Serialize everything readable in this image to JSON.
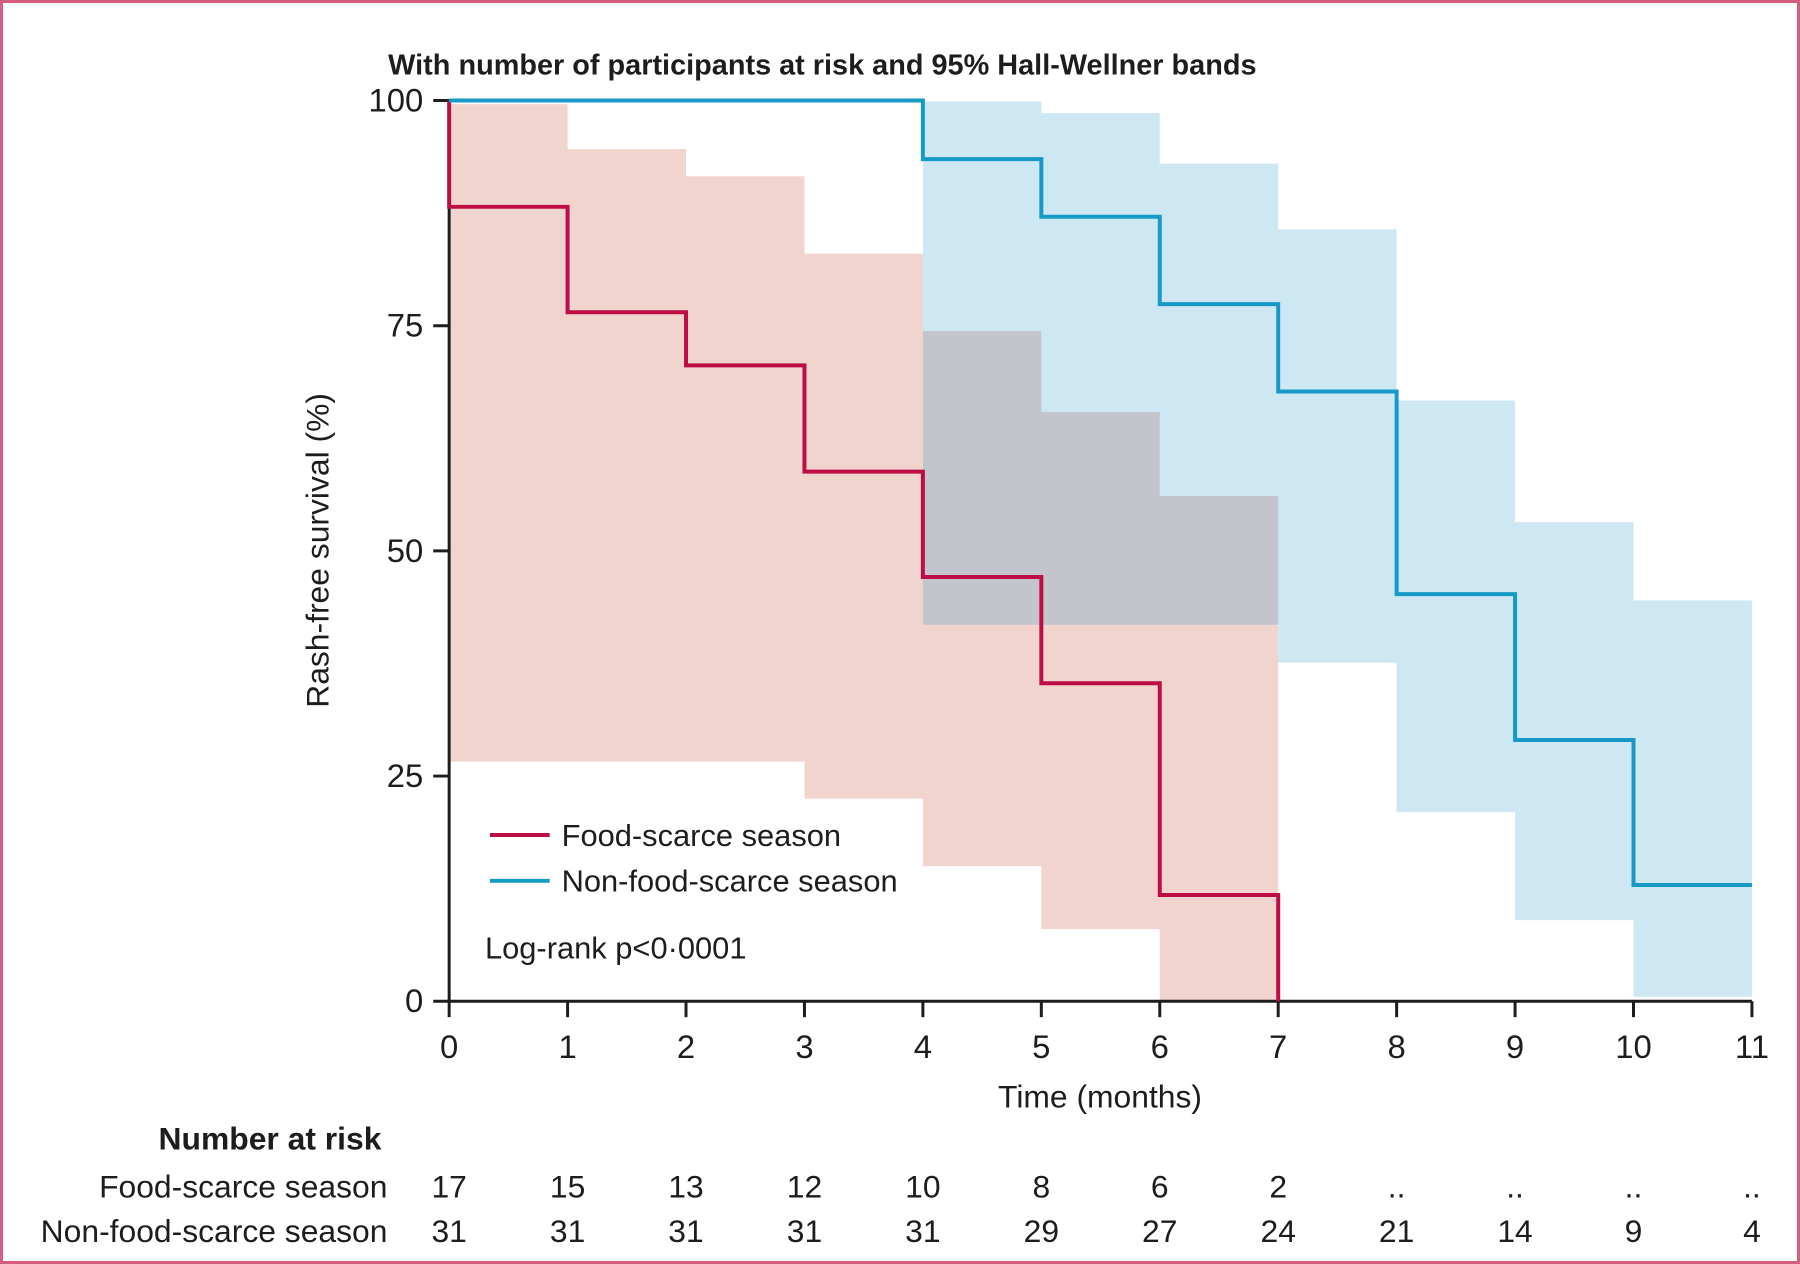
{
  "header": {
    "title": "With number of participants at risk and 95% Hall-Wellner bands"
  },
  "axes": {
    "y_label": "Rash-free survival (%)",
    "x_label": "Time (months)"
  },
  "legend": {
    "items": [
      {
        "label": "Food-scarce season",
        "color": "#BE0D45"
      },
      {
        "label": "Non-food-scarce season",
        "color": "#1699C6"
      }
    ]
  },
  "annotation": {
    "logrank": "Log-rank p<0·0001"
  },
  "risk_table": {
    "header": "Number at risk",
    "rows": [
      {
        "label": "Food-scarce season",
        "values": [
          "17",
          "15",
          "13",
          "12",
          "10",
          "8",
          "6",
          "2",
          "..",
          "..",
          "..",
          ".."
        ]
      },
      {
        "label": "Non-food-scarce season",
        "values": [
          "31",
          "31",
          "31",
          "31",
          "31",
          "29",
          "27",
          "24",
          "21",
          "14",
          "9",
          "4"
        ]
      }
    ]
  },
  "colors": {
    "red_line": "#BE0D45",
    "red_band": "#F2D4CF",
    "blue_line": "#1699C6",
    "blue_band": "#CEE8F3",
    "band_overlap": "#C3C4CC",
    "axis": "#1d1d1b",
    "figure_border": "#D55E80"
  },
  "chart_data": {
    "type": "line",
    "subtype": "kaplan-meier-step",
    "title": "With number of participants at risk and 95% Hall-Wellner bands",
    "xlabel": "Time (months)",
    "ylabel": "Rash-free survival (%)",
    "xlim": [
      0,
      11
    ],
    "ylim": [
      0,
      100
    ],
    "x_ticks": [
      0,
      1,
      2,
      3,
      4,
      5,
      6,
      7,
      8,
      9,
      10,
      11
    ],
    "y_ticks": [
      0,
      25,
      50,
      75,
      100
    ],
    "grid": false,
    "legend_position": "inside-lower-left",
    "series": [
      {
        "name": "Food-scarce season",
        "color": "#BE0D45",
        "band_color": "#F2D4CF",
        "start_survival": 100,
        "drops": [
          [
            0,
            88.2
          ],
          [
            1,
            76.5
          ],
          [
            2,
            70.6
          ],
          [
            3,
            58.8
          ],
          [
            4,
            47.1
          ],
          [
            5,
            35.3
          ],
          [
            6,
            11.8
          ],
          [
            7,
            0
          ]
        ],
        "end_time": 7,
        "band": [
          [
            0,
            1,
            26.6,
            99.6
          ],
          [
            1,
            2,
            26.6,
            94.6
          ],
          [
            2,
            3,
            26.6,
            91.6
          ],
          [
            3,
            4,
            22.5,
            83.0
          ],
          [
            4,
            5,
            15.0,
            74.4
          ],
          [
            5,
            6,
            8.0,
            65.4
          ],
          [
            6,
            7,
            0,
            56.1
          ]
        ]
      },
      {
        "name": "Non-food-scarce season",
        "color": "#1699C6",
        "band_color": "#CEE8F3",
        "start_survival": 100,
        "drops": [
          [
            4,
            93.5
          ],
          [
            5,
            87.1
          ],
          [
            6,
            77.4
          ],
          [
            7,
            67.7
          ],
          [
            8,
            45.2
          ],
          [
            9,
            29.0
          ],
          [
            10,
            12.9
          ]
        ],
        "end_time": 11,
        "band": [
          [
            4,
            5,
            41.8,
            99.9
          ],
          [
            5,
            6,
            41.8,
            98.6
          ],
          [
            6,
            7,
            41.8,
            93.0
          ],
          [
            7,
            8,
            37.6,
            85.7
          ],
          [
            8,
            9,
            21.0,
            66.7
          ],
          [
            9,
            10,
            9.0,
            53.2
          ],
          [
            10,
            11,
            0.5,
            44.5
          ]
        ]
      }
    ],
    "band_overlap_color": "#C3C4CC",
    "annotation": "Log-rank p<0·0001",
    "number_at_risk": {
      "times": [
        0,
        1,
        2,
        3,
        4,
        5,
        6,
        7,
        8,
        9,
        10,
        11
      ],
      "Food-scarce season": [
        "17",
        "15",
        "13",
        "12",
        "10",
        "8",
        "6",
        "2",
        "..",
        "..",
        "..",
        ".."
      ],
      "Non-food-scarce season": [
        "31",
        "31",
        "31",
        "31",
        "31",
        "29",
        "27",
        "24",
        "21",
        "14",
        "9",
        "4"
      ]
    }
  }
}
